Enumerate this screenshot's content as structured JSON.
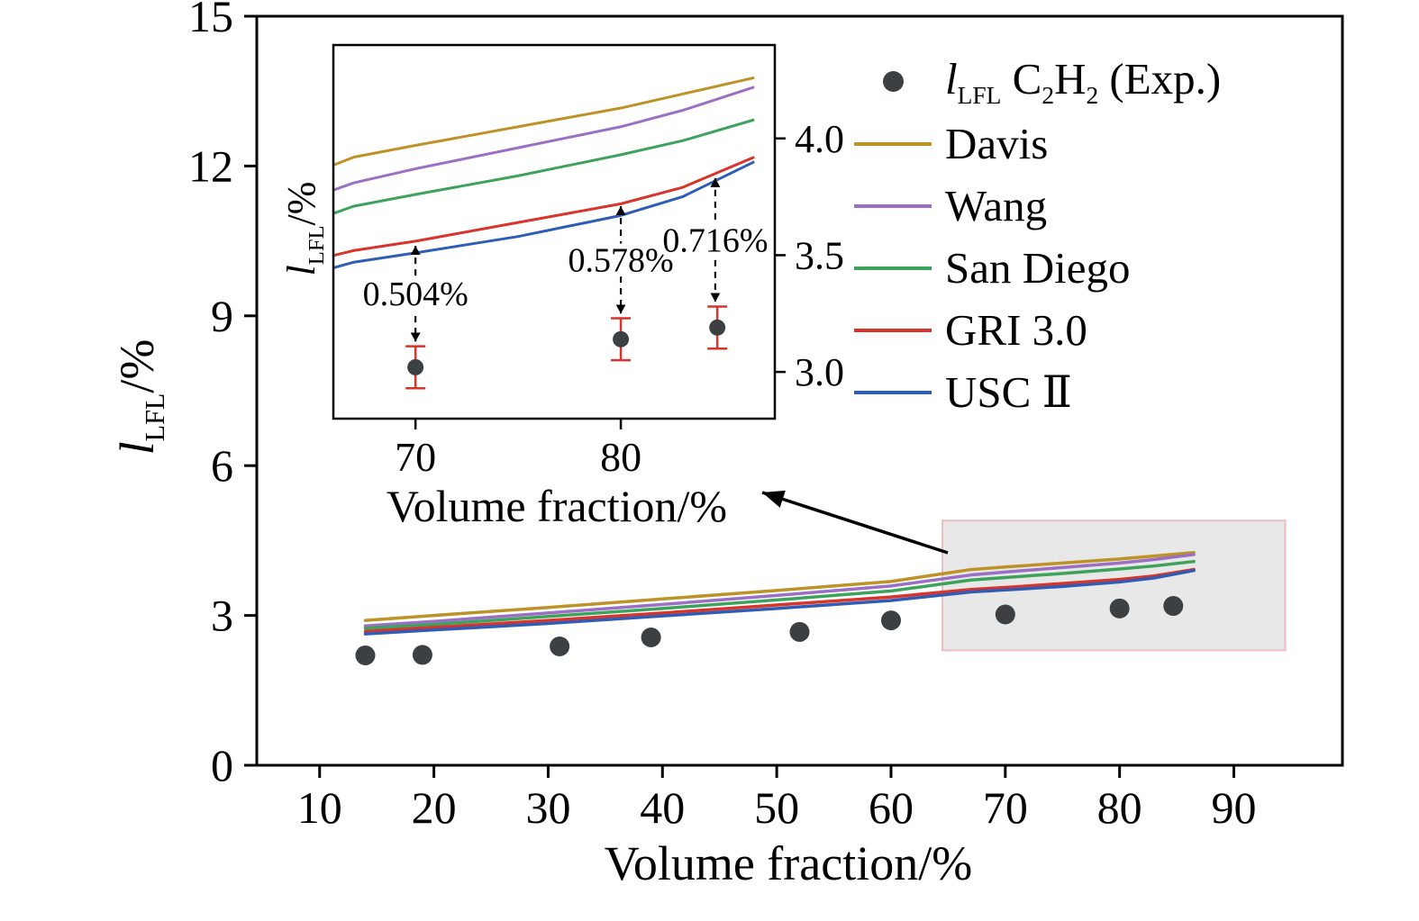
{
  "colors": {
    "exp": "#3c4043",
    "davis": "#bd9327",
    "wang": "#9a6fc4",
    "san_diego": "#3da35c",
    "gri30": "#d9342b",
    "usc2": "#2f5cb5",
    "error_bar": "#d9342b",
    "highlight_fill": "#e8e8e8",
    "highlight_border": "#f0bcc0"
  },
  "chart_data": [
    {
      "id": "main",
      "type": "line",
      "xlabel": "Volume fraction/%",
      "ylabel": "l_LFL/%",
      "xlim": [
        4.5,
        99.5
      ],
      "ylim": [
        0,
        15
      ],
      "xticks": [
        10,
        20,
        30,
        40,
        50,
        60,
        70,
        80,
        90
      ],
      "xtick_labels": [
        "10",
        "20",
        "30",
        "40",
        "50",
        "60",
        "70",
        "80",
        "90"
      ],
      "yticks": [
        0,
        3,
        6,
        9,
        12,
        15
      ],
      "ytick_labels": [
        "0",
        "3",
        "6",
        "9",
        "12",
        "15"
      ],
      "grid": false,
      "legend_position": "upper right",
      "x": [
        14,
        20,
        30,
        40,
        50,
        60,
        67,
        70,
        75,
        80,
        83,
        86.5
      ],
      "series": [
        {
          "name": "Davis",
          "color_key": "davis",
          "values": [
            2.9,
            3.0,
            3.16,
            3.33,
            3.5,
            3.68,
            3.92,
            3.97,
            4.05,
            4.13,
            4.19,
            4.26
          ]
        },
        {
          "name": "Wang",
          "color_key": "wang",
          "values": [
            2.79,
            2.88,
            3.05,
            3.22,
            3.4,
            3.59,
            3.81,
            3.87,
            3.96,
            4.05,
            4.12,
            4.22
          ]
        },
        {
          "name": "San Diego",
          "color_key": "san_diego",
          "values": [
            2.74,
            2.82,
            2.98,
            3.14,
            3.31,
            3.49,
            3.71,
            3.76,
            3.84,
            3.93,
            3.99,
            4.08
          ]
        },
        {
          "name": "GRI 3.0",
          "color_key": "gri30",
          "values": [
            2.68,
            2.76,
            2.9,
            3.05,
            3.21,
            3.37,
            3.52,
            3.56,
            3.64,
            3.72,
            3.79,
            3.92
          ]
        },
        {
          "name": "USC Ⅱ",
          "color_key": "usc2",
          "values": [
            2.63,
            2.71,
            2.84,
            2.99,
            3.14,
            3.3,
            3.47,
            3.51,
            3.58,
            3.67,
            3.75,
            3.9
          ]
        }
      ],
      "scatter": {
        "name": "l_LFL C2H2 (Exp.)",
        "x": [
          14,
          19,
          31,
          39,
          52,
          60,
          70,
          80,
          84.7
        ],
        "y": [
          2.2,
          2.21,
          2.38,
          2.56,
          2.67,
          2.9,
          3.02,
          3.14,
          3.19
        ]
      },
      "highlight_region": {
        "x0": 64.5,
        "x1": 94.5,
        "y0": 2.3,
        "y1": 4.9
      }
    },
    {
      "id": "inset",
      "type": "line",
      "xlabel": "Volume fraction/%",
      "ylabel": "l_LFL/%",
      "xlim": [
        66,
        87.5
      ],
      "ylim": [
        2.8,
        4.4
      ],
      "xticks": [
        70,
        80
      ],
      "xtick_labels": [
        "70",
        "80"
      ],
      "yticks": [
        3.0,
        3.5,
        4.0
      ],
      "ytick_labels": [
        "3.0",
        "3.5",
        "4.0"
      ],
      "grid": false,
      "series_from": "main",
      "scatter": {
        "x": [
          70,
          80,
          84.7
        ],
        "y": [
          3.02,
          3.14,
          3.19
        ],
        "yerr": [
          0.09,
          0.09,
          0.09
        ]
      },
      "annotations": [
        {
          "x": 70,
          "y_top": 3.54,
          "y_bottom": 3.13,
          "label": "0.504%"
        },
        {
          "x": 80,
          "y_top": 3.71,
          "y_bottom": 3.25,
          "label": "0.578%"
        },
        {
          "x": 84.6,
          "y_top": 3.83,
          "y_bottom": 3.3,
          "label": "0.716%"
        }
      ]
    }
  ],
  "labels": {
    "main_xlabel": "Volume fraction/%",
    "main_ylabel": {
      "symbol": "l",
      "sub": "LFL",
      "unit": "/%"
    },
    "inset_xlabel": "Volume fraction/%",
    "inset_ylabel": {
      "symbol": "l",
      "sub": "LFL",
      "unit": "/%"
    }
  },
  "legend": {
    "exp_item": {
      "marker": "dot",
      "label_symbol": "l",
      "label_symbol_sub": "LFL",
      "label_rest_1": " C",
      "label_sub_1": "2",
      "label_rest_2": "H",
      "label_sub_2": "2",
      "label_rest_3": " (Exp.)"
    },
    "items": [
      {
        "label": "Davis",
        "color_key": "davis"
      },
      {
        "label": "Wang",
        "color_key": "wang"
      },
      {
        "label": "San Diego",
        "color_key": "san_diego"
      },
      {
        "label": "GRI 3.0",
        "color_key": "gri30"
      },
      {
        "label": "USC Ⅱ",
        "color_key": "usc2"
      }
    ]
  }
}
